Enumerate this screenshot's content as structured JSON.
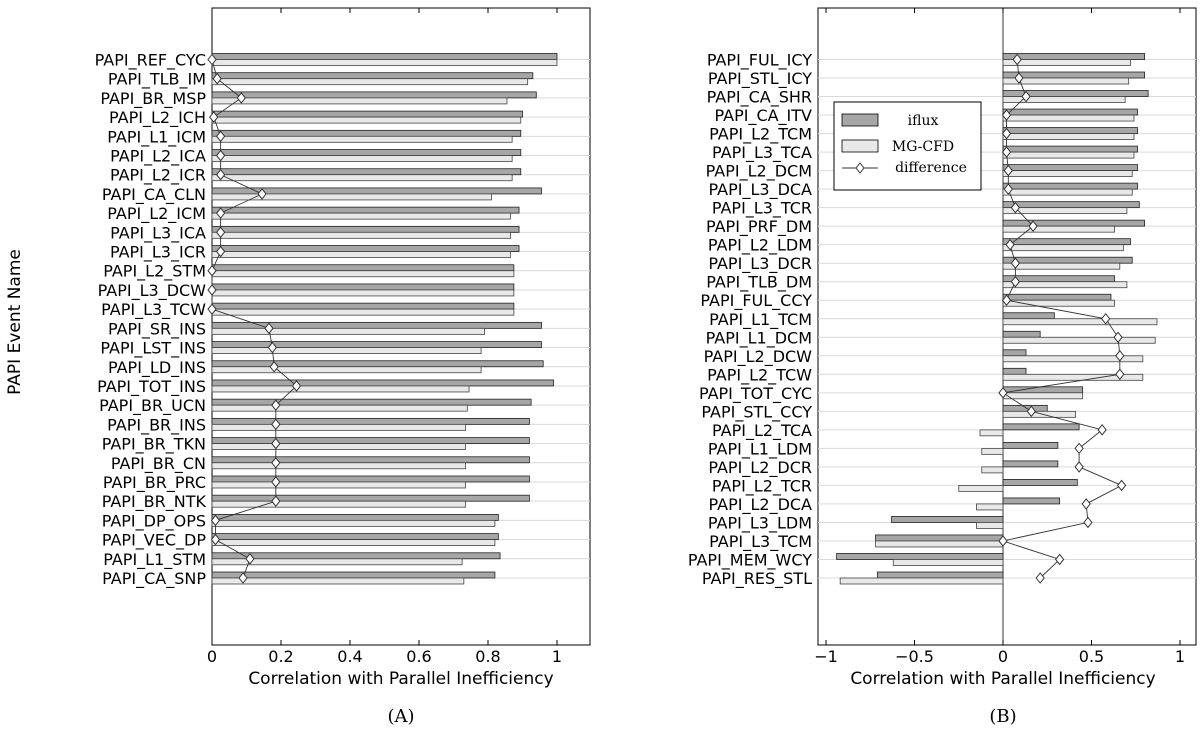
{
  "y_axis_title": "PAPI Event Name",
  "legend": {
    "position": "top-left",
    "entries": [
      {
        "label": "iflux",
        "color": "#a6a6a6"
      },
      {
        "label": "MG-CFD",
        "color": "#e8e8e8"
      },
      {
        "label": "difference",
        "color": "#333333"
      }
    ]
  },
  "chart_data": [
    {
      "type": "bar",
      "orientation": "horizontal",
      "panel_label": "(A)",
      "xlabel": "Correlation with Parallel Inefficiency",
      "ylabel": "PAPI Event Name",
      "xlim": [
        0,
        1.1
      ],
      "xticks": [
        0,
        0.2,
        0.4,
        0.6,
        0.8,
        1
      ],
      "xtick_labels": [
        "0",
        "0.2",
        "0.4",
        "0.6",
        "0.8",
        "1"
      ],
      "grid": "horizontal",
      "categories": [
        "PAPI_REF_CYC",
        "PAPI_TLB_IM",
        "PAPI_BR_MSP",
        "PAPI_L2_ICH",
        "PAPI_L1_ICM",
        "PAPI_L2_ICA",
        "PAPI_L2_ICR",
        "PAPI_CA_CLN",
        "PAPI_L2_ICM",
        "PAPI_L3_ICA",
        "PAPI_L3_ICR",
        "PAPI_L2_STM",
        "PAPI_L3_DCW",
        "PAPI_L3_TCW",
        "PAPI_SR_INS",
        "PAPI_LST_INS",
        "PAPI_LD_INS",
        "PAPI_TOT_INS",
        "PAPI_BR_UCN",
        "PAPI_BR_INS",
        "PAPI_BR_TKN",
        "PAPI_BR_CN",
        "PAPI_BR_PRC",
        "PAPI_BR_NTK",
        "PAPI_DP_OPS",
        "PAPI_VEC_DP",
        "PAPI_L1_STM",
        "PAPI_CA_SNP"
      ],
      "series": [
        {
          "name": "iflux",
          "values": [
            1.0,
            0.93,
            0.94,
            0.9,
            0.895,
            0.895,
            0.895,
            0.955,
            0.89,
            0.89,
            0.89,
            0.875,
            0.875,
            0.875,
            0.955,
            0.955,
            0.96,
            0.99,
            0.925,
            0.92,
            0.92,
            0.92,
            0.92,
            0.92,
            0.83,
            0.83,
            0.835,
            0.82
          ]
        },
        {
          "name": "MG-CFD",
          "values": [
            1.0,
            0.915,
            0.855,
            0.895,
            0.87,
            0.87,
            0.87,
            0.81,
            0.865,
            0.865,
            0.865,
            0.875,
            0.875,
            0.875,
            0.79,
            0.78,
            0.78,
            0.745,
            0.74,
            0.735,
            0.735,
            0.735,
            0.735,
            0.735,
            0.82,
            0.82,
            0.725,
            0.73
          ]
        },
        {
          "name": "difference",
          "values": [
            0.0,
            0.015,
            0.085,
            0.005,
            0.025,
            0.025,
            0.025,
            0.145,
            0.025,
            0.025,
            0.025,
            0.0,
            0.0,
            0.0,
            0.165,
            0.175,
            0.18,
            0.245,
            0.185,
            0.185,
            0.185,
            0.185,
            0.185,
            0.185,
            0.01,
            0.01,
            0.11,
            0.09
          ]
        }
      ]
    },
    {
      "type": "bar",
      "orientation": "horizontal",
      "panel_label": "(B)",
      "xlabel": "Correlation with Parallel Inefficiency",
      "ylabel": "",
      "xlim": [
        -1.1,
        1.1
      ],
      "xticks": [
        -1,
        -0.5,
        0,
        0.5,
        1
      ],
      "xtick_labels": [
        "−1",
        "−0.5",
        "0",
        "0.5",
        "1"
      ],
      "grid": "horizontal",
      "categories": [
        "PAPI_FUL_ICY",
        "PAPI_STL_ICY",
        "PAPI_CA_SHR",
        "PAPI_CA_ITV",
        "PAPI_L2_TCM",
        "PAPI_L3_TCA",
        "PAPI_L2_DCM",
        "PAPI_L3_DCA",
        "PAPI_L3_TCR",
        "PAPI_PRF_DM",
        "PAPI_L2_LDM",
        "PAPI_L3_DCR",
        "PAPI_TLB_DM",
        "PAPI_FUL_CCY",
        "PAPI_L1_TCM",
        "PAPI_L1_DCM",
        "PAPI_L2_DCW",
        "PAPI_L2_TCW",
        "PAPI_TOT_CYC",
        "PAPI_STL_CCY",
        "PAPI_L2_TCA",
        "PAPI_L1_LDM",
        "PAPI_L2_DCR",
        "PAPI_L2_TCR",
        "PAPI_L2_DCA",
        "PAPI_L3_LDM",
        "PAPI_L3_TCM",
        "PAPI_MEM_WCY",
        "PAPI_RES_STL"
      ],
      "series": [
        {
          "name": "iflux",
          "values": [
            0.8,
            0.8,
            0.82,
            0.76,
            0.76,
            0.76,
            0.76,
            0.76,
            0.77,
            0.8,
            0.72,
            0.73,
            0.63,
            0.61,
            0.29,
            0.21,
            0.13,
            0.13,
            0.45,
            0.25,
            0.43,
            0.31,
            0.31,
            0.42,
            0.32,
            -0.63,
            -0.72,
            -0.94,
            -0.71
          ]
        },
        {
          "name": "MG-CFD",
          "values": [
            0.72,
            0.71,
            0.69,
            0.74,
            0.74,
            0.74,
            0.73,
            0.73,
            0.7,
            0.63,
            0.68,
            0.66,
            0.7,
            0.63,
            0.87,
            0.86,
            0.79,
            0.79,
            0.45,
            0.41,
            -0.13,
            -0.12,
            -0.12,
            -0.25,
            -0.15,
            -0.15,
            -0.72,
            -0.62,
            -0.92
          ]
        },
        {
          "name": "difference",
          "values": [
            0.08,
            0.09,
            0.13,
            0.02,
            0.02,
            0.02,
            0.03,
            0.03,
            0.07,
            0.17,
            0.04,
            0.07,
            0.07,
            0.02,
            0.58,
            0.65,
            0.66,
            0.66,
            0.0,
            0.16,
            0.56,
            0.43,
            0.43,
            0.67,
            0.47,
            0.48,
            0.0,
            0.32,
            0.21
          ]
        }
      ]
    }
  ]
}
